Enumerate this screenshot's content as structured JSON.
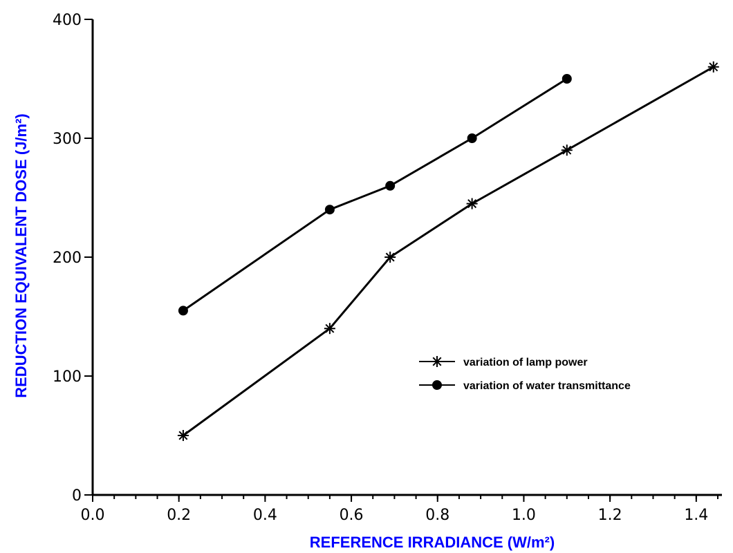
{
  "chart_data": {
    "type": "line",
    "xlabel": "REFERENCE IRRADIANCE (W/m²)",
    "ylabel": "REDUCTION EQUIVALENT DOSE (J/m²)",
    "xlim": [
      0.0,
      1.45
    ],
    "ylim": [
      0,
      400
    ],
    "x_ticks": [
      "0.0",
      "0.2",
      "0.4",
      "0.6",
      "0.8",
      "1.0",
      "1.2",
      "1.4"
    ],
    "y_ticks": [
      "0",
      "100",
      "200",
      "300",
      "400"
    ],
    "axis_label_color": "#0000ff",
    "legend_position": "lower-right",
    "grid": false,
    "series": [
      {
        "name": "variation of lamp power",
        "marker": "asterisk",
        "x": [
          0.21,
          0.55,
          0.69,
          0.88,
          1.1,
          1.44
        ],
        "y": [
          50,
          140,
          200,
          245,
          290,
          360
        ]
      },
      {
        "name": "variation of water transmittance",
        "marker": "filled-circle",
        "x": [
          0.21,
          0.55,
          0.69,
          0.88,
          1.1
        ],
        "y": [
          155,
          240,
          260,
          300,
          350
        ]
      }
    ]
  }
}
